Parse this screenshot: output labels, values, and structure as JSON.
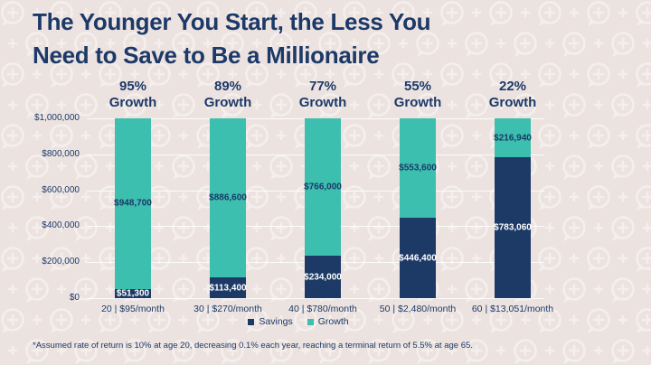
{
  "title_lines": [
    "The Younger You Start, the Less You",
    "Need to Save to Be a Millionaire"
  ],
  "footnote": "*Assumed rate of return is 10% at age 20, decreasing 0.1% each year, reaching a terminal return of 5.5% at age 65.",
  "colors": {
    "background": "#ece3e0",
    "navy": "#1c3968",
    "savings": "#1d3a67",
    "growth": "#3cbfae",
    "label_on_savings": "#ffffff",
    "label_on_growth": "#1c3968"
  },
  "legend": [
    {
      "label": "Savings",
      "color": "#1d3a67"
    },
    {
      "label": "Growth",
      "color": "#3cbfae"
    }
  ],
  "chart_data": {
    "type": "bar",
    "stacked": true,
    "title": "The Younger You Start, the Less You Need to Save to Be a Millionaire",
    "categories": [
      "20 | $95/month",
      "30 | $270/month",
      "40 | $780/month",
      "50 | $2,480/month",
      "60 | $13,051/month"
    ],
    "growth_labels": [
      {
        "pct": "95%",
        "word": "Growth"
      },
      {
        "pct": "89%",
        "word": "Growth"
      },
      {
        "pct": "77%",
        "word": "Growth"
      },
      {
        "pct": "55%",
        "word": "Growth"
      },
      {
        "pct": "22%",
        "word": "Growth"
      }
    ],
    "series": [
      {
        "name": "Savings",
        "color": "#1d3a67",
        "values": [
          51300,
          113400,
          234000,
          446400,
          783060
        ],
        "labels": [
          "$51,300",
          "$113,400",
          "$234,000",
          "$446,400",
          "$783,060"
        ]
      },
      {
        "name": "Growth",
        "color": "#3cbfae",
        "values": [
          948700,
          886600,
          766000,
          553600,
          216940
        ],
        "labels": [
          "$948,700",
          "$886,600",
          "$766,000",
          "$553,600",
          "$216,940"
        ]
      }
    ],
    "ylim": [
      0,
      1000000
    ],
    "yticks": [
      "$1,000,000",
      "$800,000",
      "$600,000",
      "$400,000",
      "$200,000",
      "$0"
    ],
    "grid": true,
    "legend_position": "bottom",
    "xlabel": "",
    "ylabel": ""
  }
}
